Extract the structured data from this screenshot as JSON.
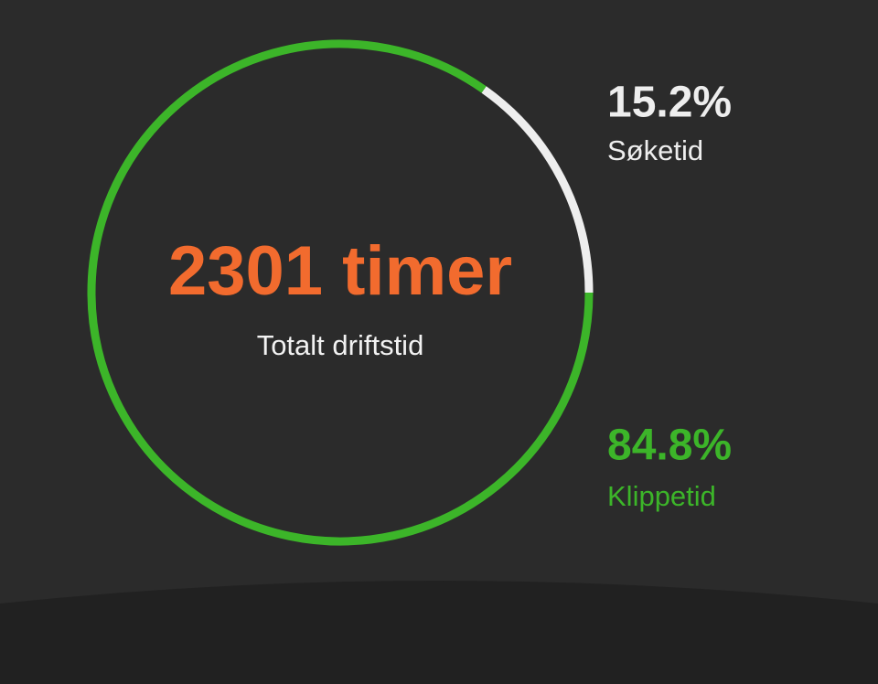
{
  "chart_data": {
    "type": "donut",
    "center_title": "2301 timer",
    "center_subtitle": "Totalt driftstid",
    "categories": [
      "Søketid",
      "Klippetid"
    ],
    "values": [
      15.2,
      84.8
    ],
    "value_labels": [
      "15.2%",
      "84.8%"
    ],
    "colors": [
      "#eeeeee",
      "#3cb529"
    ]
  }
}
